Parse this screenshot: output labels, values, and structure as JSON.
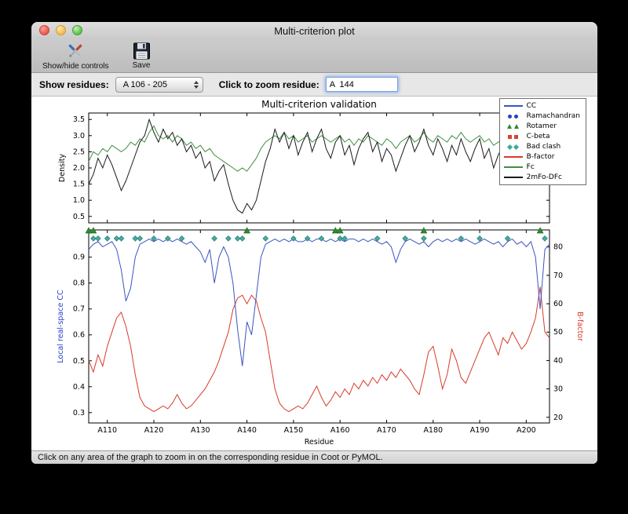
{
  "window": {
    "title": "Multi-criterion plot"
  },
  "toolbar": {
    "show_hide_label": "Show/hide controls",
    "save_label": "Save"
  },
  "controls": {
    "show_residues_label": "Show residues:",
    "residue_range_value": "A 106 - 205",
    "zoom_residue_label": "Click to zoom residue:",
    "zoom_residue_value": "A  144"
  },
  "status_bar": {
    "text": "Click on any area of the graph to zoom in on the corresponding residue in Coot or PyMOL."
  },
  "chart_data": {
    "type": "line",
    "title": "Multi-criterion validation",
    "xlabel": "Residue",
    "x_range": [
      106,
      205
    ],
    "x_ticks": [
      {
        "v": 110,
        "label": "A110"
      },
      {
        "v": 120,
        "label": "A120"
      },
      {
        "v": 130,
        "label": "A130"
      },
      {
        "v": 140,
        "label": "A140"
      },
      {
        "v": 150,
        "label": "A150"
      },
      {
        "v": 160,
        "label": "A160"
      },
      {
        "v": 170,
        "label": "A170"
      },
      {
        "v": 180,
        "label": "A180"
      },
      {
        "v": 190,
        "label": "A190"
      },
      {
        "v": 200,
        "label": "A200"
      }
    ],
    "legend": [
      {
        "label": "CC",
        "glyph": "line",
        "color": "#3a53c4"
      },
      {
        "label": "Ramachandran",
        "glyph": "circle",
        "color": "#2a41c8"
      },
      {
        "label": "Rotamer",
        "glyph": "triangle",
        "color": "#2e8b2e"
      },
      {
        "label": "C-beta",
        "glyph": "square",
        "color": "#d8442e"
      },
      {
        "label": "Bad clash",
        "glyph": "diamond",
        "color": "#3fa69d"
      },
      {
        "label": "B-factor",
        "glyph": "line",
        "color": "#d93a2b"
      },
      {
        "label": "Fc",
        "glyph": "line",
        "color": "#3f8f3f"
      },
      {
        "label": "2mFo-DFc",
        "glyph": "line",
        "color": "#1a1a1a"
      }
    ],
    "top": {
      "ylabel": "Density",
      "ylim": [
        0.3,
        3.7
      ],
      "yticks": [
        0.5,
        1.0,
        1.5,
        2.0,
        2.5,
        3.0,
        3.5
      ],
      "series": [
        {
          "name": "Fc",
          "color": "#3f8f3f",
          "values": [
            2.2,
            2.5,
            2.4,
            2.6,
            2.5,
            2.7,
            2.6,
            2.5,
            2.6,
            2.8,
            2.7,
            2.9,
            2.8,
            3.1,
            3.3,
            3.0,
            2.9,
            3.0,
            2.8,
            3.0,
            2.9,
            2.7,
            2.8,
            2.6,
            2.7,
            2.5,
            2.6,
            2.4,
            2.3,
            2.2,
            2.1,
            2.0,
            1.9,
            2.0,
            1.9,
            2.1,
            2.3,
            2.6,
            2.8,
            2.9,
            3.0,
            2.9,
            3.1,
            2.9,
            3.0,
            2.8,
            2.9,
            3.0,
            2.8,
            2.9,
            3.0,
            2.9,
            2.8,
            2.9,
            3.0,
            2.8,
            2.9,
            2.7,
            2.9,
            2.8,
            3.0,
            2.9,
            2.8,
            2.7,
            2.9,
            2.8,
            2.6,
            2.8,
            2.9,
            3.0,
            2.8,
            2.9,
            3.1,
            2.9,
            2.8,
            3.0,
            2.9,
            2.8,
            3.0,
            2.9,
            3.1,
            2.9,
            2.8,
            2.9,
            3.0,
            2.8,
            2.9,
            2.7,
            2.8,
            2.9,
            2.7,
            2.8,
            2.6,
            2.8,
            2.7,
            2.9,
            2.8,
            2.5,
            2.7,
            2.6
          ]
        },
        {
          "name": "2mFo-DFc",
          "color": "#1a1a1a",
          "values": [
            1.5,
            1.8,
            2.3,
            2.0,
            2.4,
            2.1,
            1.7,
            1.3,
            1.6,
            2.0,
            2.4,
            2.8,
            3.0,
            3.5,
            3.1,
            2.8,
            3.2,
            2.9,
            3.1,
            2.7,
            2.9,
            2.5,
            2.7,
            2.3,
            2.5,
            2.0,
            2.2,
            1.6,
            1.9,
            2.1,
            1.5,
            1.0,
            0.7,
            0.6,
            0.9,
            0.7,
            1.0,
            1.6,
            2.2,
            2.6,
            3.2,
            2.8,
            3.1,
            2.6,
            3.0,
            2.4,
            2.8,
            3.1,
            2.5,
            2.9,
            3.2,
            2.6,
            2.3,
            2.8,
            3.0,
            2.4,
            2.7,
            2.1,
            2.6,
            2.9,
            3.1,
            2.5,
            2.8,
            2.2,
            2.6,
            2.4,
            1.9,
            2.3,
            2.7,
            3.0,
            2.5,
            2.8,
            3.2,
            2.7,
            2.4,
            2.9,
            2.6,
            2.2,
            2.7,
            2.4,
            2.9,
            2.5,
            2.2,
            2.6,
            2.9,
            2.3,
            2.6,
            2.0,
            2.4,
            2.7,
            2.2,
            2.5,
            1.9,
            2.3,
            2.1,
            2.5,
            2.7,
            2.0,
            2.3,
            2.2
          ]
        }
      ]
    },
    "bottom": {
      "ylabel_left": "Local real-space CC",
      "ylabel_left_color": "#2a41c8",
      "ylabel_right": "B-factor",
      "ylabel_right_color": "#d93a2b",
      "ylim_left": [
        0.26,
        1.005
      ],
      "yticks_left": [
        0.3,
        0.4,
        0.5,
        0.6,
        0.7,
        0.8,
        0.9
      ],
      "ylim_right": [
        18,
        86
      ],
      "yticks_right": [
        20,
        30,
        40,
        50,
        60,
        70,
        80
      ],
      "series": [
        {
          "name": "B-factor",
          "axis": "right",
          "color": "#d93a2b",
          "values": [
            40,
            36,
            42,
            38,
            45,
            50,
            55,
            57,
            52,
            45,
            35,
            27,
            24,
            23,
            22,
            23,
            24,
            23,
            25,
            28,
            25,
            23,
            24,
            26,
            28,
            30,
            33,
            36,
            40,
            45,
            50,
            58,
            62,
            63,
            60,
            63,
            61,
            55,
            50,
            40,
            30,
            25,
            23,
            22,
            23,
            24,
            23,
            25,
            28,
            31,
            27,
            24,
            26,
            29,
            27,
            30,
            28,
            32,
            30,
            33,
            31,
            34,
            32,
            35,
            33,
            36,
            34,
            37,
            35,
            33,
            30,
            28,
            35,
            43,
            45,
            38,
            30,
            35,
            44,
            40,
            34,
            32,
            36,
            40,
            44,
            48,
            50,
            46,
            42,
            48,
            46,
            50,
            47,
            44,
            46,
            50,
            55,
            66,
            50,
            48
          ]
        },
        {
          "name": "CC",
          "axis": "left",
          "color": "#3a53c4",
          "values": [
            0.93,
            0.95,
            0.96,
            0.94,
            0.95,
            0.96,
            0.93,
            0.85,
            0.73,
            0.78,
            0.9,
            0.95,
            0.96,
            0.97,
            0.96,
            0.97,
            0.96,
            0.97,
            0.96,
            0.97,
            0.96,
            0.95,
            0.96,
            0.94,
            0.92,
            0.88,
            0.93,
            0.8,
            0.9,
            0.94,
            0.9,
            0.8,
            0.62,
            0.48,
            0.65,
            0.6,
            0.75,
            0.9,
            0.95,
            0.96,
            0.97,
            0.96,
            0.97,
            0.96,
            0.97,
            0.96,
            0.96,
            0.97,
            0.96,
            0.97,
            0.97,
            0.96,
            0.97,
            0.96,
            0.97,
            0.96,
            0.97,
            0.97,
            0.96,
            0.97,
            0.96,
            0.97,
            0.96,
            0.95,
            0.96,
            0.94,
            0.88,
            0.93,
            0.96,
            0.97,
            0.96,
            0.95,
            0.96,
            0.94,
            0.96,
            0.97,
            0.96,
            0.97,
            0.96,
            0.97,
            0.96,
            0.97,
            0.96,
            0.95,
            0.96,
            0.97,
            0.96,
            0.95,
            0.96,
            0.94,
            0.96,
            0.97,
            0.95,
            0.96,
            0.94,
            0.96,
            0.9,
            0.7,
            0.93,
            0.95
          ]
        }
      ],
      "markers": [
        {
          "name": "Bad clash",
          "shape": "diamond",
          "color": "#4aab9f",
          "stroke": "#1f7a70",
          "y": 0.972,
          "residues": [
            107,
            108,
            110,
            112,
            113,
            116,
            117,
            120,
            123,
            126,
            133,
            136,
            138,
            139,
            144,
            150,
            153,
            156,
            160,
            161,
            168,
            174,
            178,
            186,
            190,
            196,
            204
          ]
        },
        {
          "name": "Rotamer",
          "shape": "triangle",
          "color": "#2e8b2e",
          "stroke": "#1c6b1c",
          "residues": [
            106,
            107,
            140,
            159,
            160,
            178,
            203
          ]
        }
      ]
    }
  }
}
